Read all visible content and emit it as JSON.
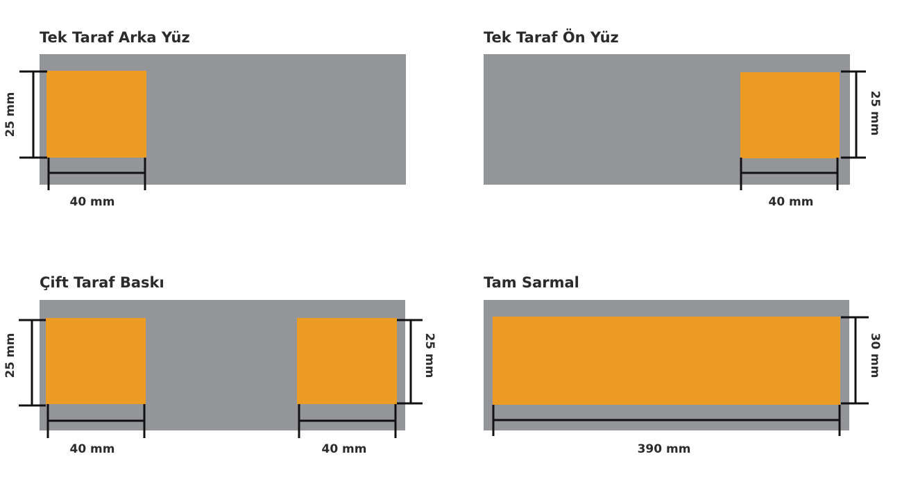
{
  "colors": {
    "background_strip": "#939598",
    "print_area": "#ec9c22",
    "dimension_lines": "#111111"
  },
  "panels": [
    {
      "title": "Tek Taraf Arka Yüz",
      "height_label": "25 mm",
      "width_label": "40 mm"
    },
    {
      "title": "Tek Taraf Ön Yüz",
      "height_label": "25 mm",
      "width_label": "40 mm"
    },
    {
      "title": "Çift Taraf Baskı",
      "left_height_label": "25 mm",
      "right_height_label": "25 mm",
      "left_width_label": "40 mm",
      "right_width_label": "40 mm"
    },
    {
      "title": "Tam Sarmal",
      "height_label": "30 mm",
      "width_label": "390 mm"
    }
  ]
}
